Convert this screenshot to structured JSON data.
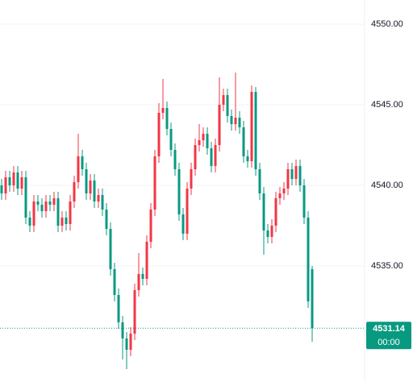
{
  "chart_data": {
    "type": "candlestick",
    "ylim": [
      4527.8,
      4551.5
    ],
    "yticks": [
      {
        "value": 4550,
        "label": "4550.00"
      },
      {
        "value": 4545,
        "label": "4545.00"
      },
      {
        "value": 4540,
        "label": "4540.00"
      },
      {
        "value": 4535,
        "label": "4535.00"
      }
    ],
    "grid": true,
    "up_color": "#f23645",
    "down_color": "#089981",
    "countdown": "00:00",
    "open": [
      4540,
      4539.5,
      4540.5,
      4540,
      4540.8,
      4539.8,
      4540.5,
      4538,
      4537.5,
      4539,
      4538.8,
      4538.4,
      4539,
      4538.8,
      4539.2,
      4537.5,
      4538,
      4537.6,
      4539,
      4540.2,
      4541.8,
      4541,
      4539.5,
      4540.3,
      4539,
      4539.4,
      4538.5,
      4537.3,
      4534.8,
      4533.2,
      4531.5,
      4530.5,
      4529.8,
      4530.8,
      4533.5,
      4534.5,
      4534.2,
      4536.5,
      4538.5,
      4541.8,
      4544.5,
      4544.8,
      4543.5,
      4542.2,
      4541,
      4538.2,
      4537,
      4539.8,
      4541,
      4542.5,
      4542.8,
      4543.2,
      4542.3,
      4541.2,
      4542.5,
      4545,
      4545.6,
      4544.3,
      4543.8,
      4544.2,
      4543.6,
      4541.8,
      4541.5,
      4545.8,
      4541,
      4539.5,
      4537.2,
      4536.8,
      4537.5,
      4539.2,
      4539.5,
      4539.8,
      4541,
      4540.4,
      4541.2,
      4540,
      4538,
      4534.8
    ],
    "high": [
      4540.4,
      4540.9,
      4540.9,
      4541.2,
      4541.2,
      4540.9,
      4540.9,
      4538.4,
      4539.4,
      4539.4,
      4539.2,
      4539.4,
      4539.4,
      4539.6,
      4539.6,
      4538.4,
      4538.4,
      4539.4,
      4540.6,
      4543.2,
      4542.2,
      4541.4,
      4540.7,
      4540.7,
      4539.8,
      4539.8,
      4538.9,
      4537.7,
      4535.2,
      4533.6,
      4531.9,
      4530.9,
      4531.2,
      4533.9,
      4535.8,
      4534.9,
      4536.9,
      4538.9,
      4542.2,
      4545.1,
      4546.6,
      4545.2,
      4543.9,
      4542.6,
      4541.4,
      4538.6,
      4540.2,
      4541.4,
      4542.9,
      4543.8,
      4543.6,
      4543.6,
      4542.7,
      4542.9,
      4546.7,
      4546,
      4546,
      4544.7,
      4547,
      4544.6,
      4544,
      4542.2,
      4546.2,
      4546.1,
      4541.4,
      4539.9,
      4537.6,
      4537.9,
      4539.6,
      4539.9,
      4540.2,
      4541.4,
      4541.4,
      4541.6,
      4541.6,
      4540.4,
      4538.4,
      4535
    ],
    "low": [
      4539.1,
      4539.1,
      4539.6,
      4539.6,
      4539.4,
      4539.4,
      4537.6,
      4537.1,
      4537.1,
      4538.4,
      4538,
      4538,
      4538.4,
      4538.4,
      4537.1,
      4537.1,
      4537.2,
      4537.2,
      4538.6,
      4539.8,
      4540.6,
      4539.1,
      4539.1,
      4538.6,
      4538.6,
      4538.1,
      4536.9,
      4534.4,
      4532.8,
      4531.1,
      4529.2,
      4528.6,
      4529.4,
      4530.4,
      4533.1,
      4533.8,
      4533.8,
      4536.1,
      4538.1,
      4541.4,
      4544.1,
      4543.1,
      4541.8,
      4540.6,
      4537.8,
      4536.6,
      4536.6,
      4539.4,
      4540.6,
      4542.1,
      4542.4,
      4541.9,
      4540.8,
      4540.8,
      4542.1,
      4544.6,
      4543.9,
      4543.4,
      4543.4,
      4543.2,
      4541.4,
      4541.1,
      4541.1,
      4540.6,
      4539.1,
      4535.7,
      4536.4,
      4536.4,
      4537.1,
      4538.8,
      4539.1,
      4539.4,
      4540,
      4540,
      4539.6,
      4537.6,
      4532.4,
      4530.3
    ],
    "close": [
      4539.5,
      4540.5,
      4540,
      4540.8,
      4539.8,
      4540.5,
      4538,
      4537.5,
      4539,
      4538.8,
      4538.4,
      4539,
      4538.8,
      4539.2,
      4537.5,
      4538,
      4537.6,
      4539,
      4540.2,
      4541.8,
      4541,
      4539.5,
      4540.3,
      4539,
      4539.4,
      4538.5,
      4537.3,
      4534.8,
      4533.2,
      4531.5,
      4530.5,
      4529.8,
      4530.8,
      4533.5,
      4534.5,
      4534.2,
      4536.5,
      4538.5,
      4541.8,
      4544.5,
      4544.8,
      4543.5,
      4542.2,
      4541,
      4538.2,
      4537,
      4539.8,
      4541,
      4542.5,
      4542.8,
      4543.2,
      4542.3,
      4541.2,
      4542.5,
      4545,
      4545.6,
      4544.3,
      4543.8,
      4544.2,
      4543.6,
      4541.8,
      4541.5,
      4545.8,
      4541,
      4539.5,
      4537.2,
      4536.8,
      4537.5,
      4539.2,
      4539.5,
      4539.8,
      4541,
      4540.4,
      4541.2,
      4540,
      4538,
      4532.8,
      4531.14
    ]
  }
}
